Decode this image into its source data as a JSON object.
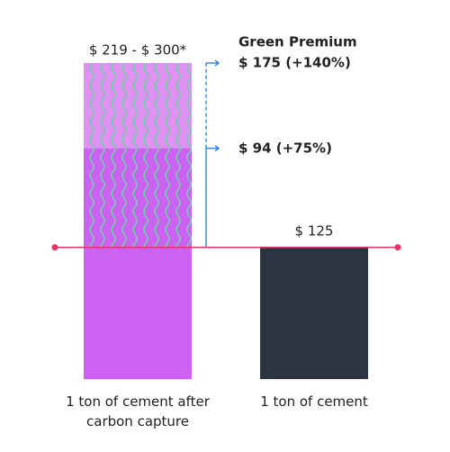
{
  "chart_data": {
    "type": "bar",
    "categories": [
      "1 ton of cement after carbon capture",
      "1 ton of cement"
    ],
    "values": [
      125,
      125
    ],
    "colors": [
      "#cc62f2",
      "#2b3541"
    ],
    "value_labels": [
      "$ 219 - $ 300*",
      "$ 125"
    ],
    "ylim": [
      0,
      300
    ],
    "reference_line": {
      "value": 125,
      "color": "#e8336b"
    },
    "premium": {
      "title": "Green Premium",
      "color": "#1e78dc",
      "pattern_color": "#6fcfa8",
      "high": {
        "value": 175,
        "label": "$ 175 (+140%)",
        "color": "#df92f2"
      },
      "low": {
        "value": 94,
        "label": "$ 94 (+75%)",
        "color": "#cc62f2"
      }
    }
  }
}
